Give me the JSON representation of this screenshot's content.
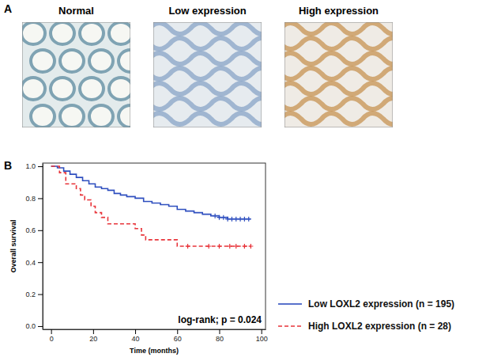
{
  "figure": {
    "panel_a": {
      "letter": "A",
      "panels": [
        {
          "title": "Normal"
        },
        {
          "title": "Low expression"
        },
        {
          "title": "High expression"
        }
      ]
    },
    "panel_b": {
      "letter": "B"
    }
  },
  "chart_data": {
    "type": "line",
    "x_label": "Time (months)",
    "y_label": "Overall survival",
    "xlim": [
      -4,
      102
    ],
    "xticks": [
      0,
      20,
      40,
      60,
      80,
      100
    ],
    "ylim": [
      -0.02,
      1.02
    ],
    "yticks": [
      {
        "value": 0,
        "label": "0.0"
      },
      {
        "value": 0.2,
        "label": "0.2"
      },
      {
        "value": 0.4,
        "label": "0.4"
      },
      {
        "value": 0.6,
        "label": "0.6"
      },
      {
        "value": 0.8,
        "label": "0.8"
      },
      {
        "value": 1,
        "label": "1.0"
      }
    ],
    "grid": false,
    "legend": "right",
    "annotations": [
      {
        "text": "log-rank; p = 0.024"
      }
    ],
    "series": [
      {
        "name": "Low LOXL2 expression (n = 195)",
        "color": "#2f4fbf",
        "line_style": "solid",
        "marker": "plus",
        "x": [
          0,
          3,
          6,
          9,
          12,
          15,
          18,
          21,
          24,
          27,
          30,
          33,
          36,
          40,
          44,
          48,
          52,
          56,
          60,
          64,
          68,
          72,
          76,
          80,
          84,
          88,
          95
        ],
        "values": [
          1,
          0.99,
          0.97,
          0.95,
          0.93,
          0.91,
          0.89,
          0.87,
          0.86,
          0.85,
          0.83,
          0.82,
          0.81,
          0.8,
          0.78,
          0.77,
          0.76,
          0.75,
          0.73,
          0.72,
          0.71,
          0.7,
          0.69,
          0.68,
          0.67,
          0.67,
          0.67
        ],
        "censored": [
          78,
          80,
          82,
          84,
          86,
          88,
          90,
          92,
          94
        ]
      },
      {
        "name": "High LOXL2 expression (n = 28)",
        "color": "#e8343a",
        "line_style": "dashed",
        "marker": "plus",
        "x": [
          0,
          4,
          7,
          12,
          14,
          16,
          19,
          21,
          24,
          27,
          40,
          43,
          45,
          60,
          95
        ],
        "values": [
          1,
          0.96,
          0.89,
          0.86,
          0.82,
          0.79,
          0.75,
          0.71,
          0.68,
          0.64,
          0.61,
          0.57,
          0.54,
          0.5,
          0.5
        ],
        "censored": [
          65,
          75,
          80,
          85,
          88,
          92,
          95
        ]
      }
    ]
  }
}
